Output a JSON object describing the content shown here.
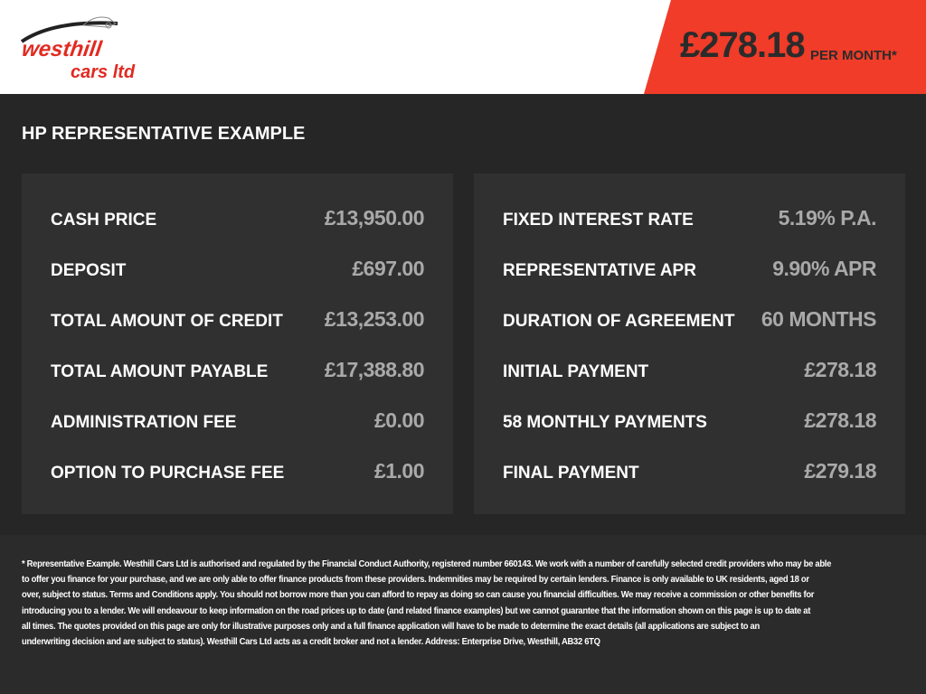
{
  "brand": {
    "logo_text_line1": "westhill",
    "logo_text_line2": "cars ltd",
    "primary_color": "#f03c28"
  },
  "header": {
    "price": "£278.18",
    "per_month": "PER MONTH*"
  },
  "section_title": "HP REPRESENTATIVE EXAMPLE",
  "left_panel": [
    {
      "label": "CASH PRICE",
      "value": "£13,950.00"
    },
    {
      "label": "DEPOSIT",
      "value": "£697.00"
    },
    {
      "label": "TOTAL AMOUNT OF CREDIT",
      "value": "£13,253.00"
    },
    {
      "label": "TOTAL AMOUNT PAYABLE",
      "value": "£17,388.80"
    },
    {
      "label": "ADMINISTRATION FEE",
      "value": "£0.00"
    },
    {
      "label": "OPTION TO PURCHASE FEE",
      "value": "£1.00"
    }
  ],
  "right_panel": [
    {
      "label": "FIXED INTEREST RATE",
      "value": "5.19% P.A."
    },
    {
      "label": "REPRESENTATIVE APR",
      "value": "9.90% APR"
    },
    {
      "label": "DURATION OF AGREEMENT",
      "value": "60 MONTHS"
    },
    {
      "label": "INITIAL PAYMENT",
      "value": "£278.18"
    },
    {
      "label": "58 MONTHLY PAYMENTS",
      "value": "£278.18"
    },
    {
      "label": "FINAL PAYMENT",
      "value": "£279.18"
    }
  ],
  "footer_lines": [
    "* Representative Example. Westhill Cars Ltd is authorised and regulated by the Financial Conduct Authority, registered number 660143. We work with a number of carefully selected credit providers who may be able",
    "to offer you finance for your purchase, and we are only able to offer finance products from these providers. Indemnities may be required by certain lenders. Finance is only available to UK residents, aged 18 or",
    "over, subject to status. Terms and Conditions apply. You should not borrow more than you can afford to repay as doing so can cause you financial difficulties. We may receive a commission or other benefits for",
    "introducing you to a lender. We will endeavour to keep information on the road prices up to date (and related finance examples) but we cannot guarantee that the information shown on this page is up to date at",
    "all times. The quotes provided on this page are only for illustrative purposes only and a full finance application will have to be made to determine the exact details (all applications are subject to an",
    "underwriting decision and are subject to status). Westhill Cars Ltd acts as a credit broker and not a lender. Address: Enterprise Drive, Westhill, AB32 6TQ"
  ]
}
